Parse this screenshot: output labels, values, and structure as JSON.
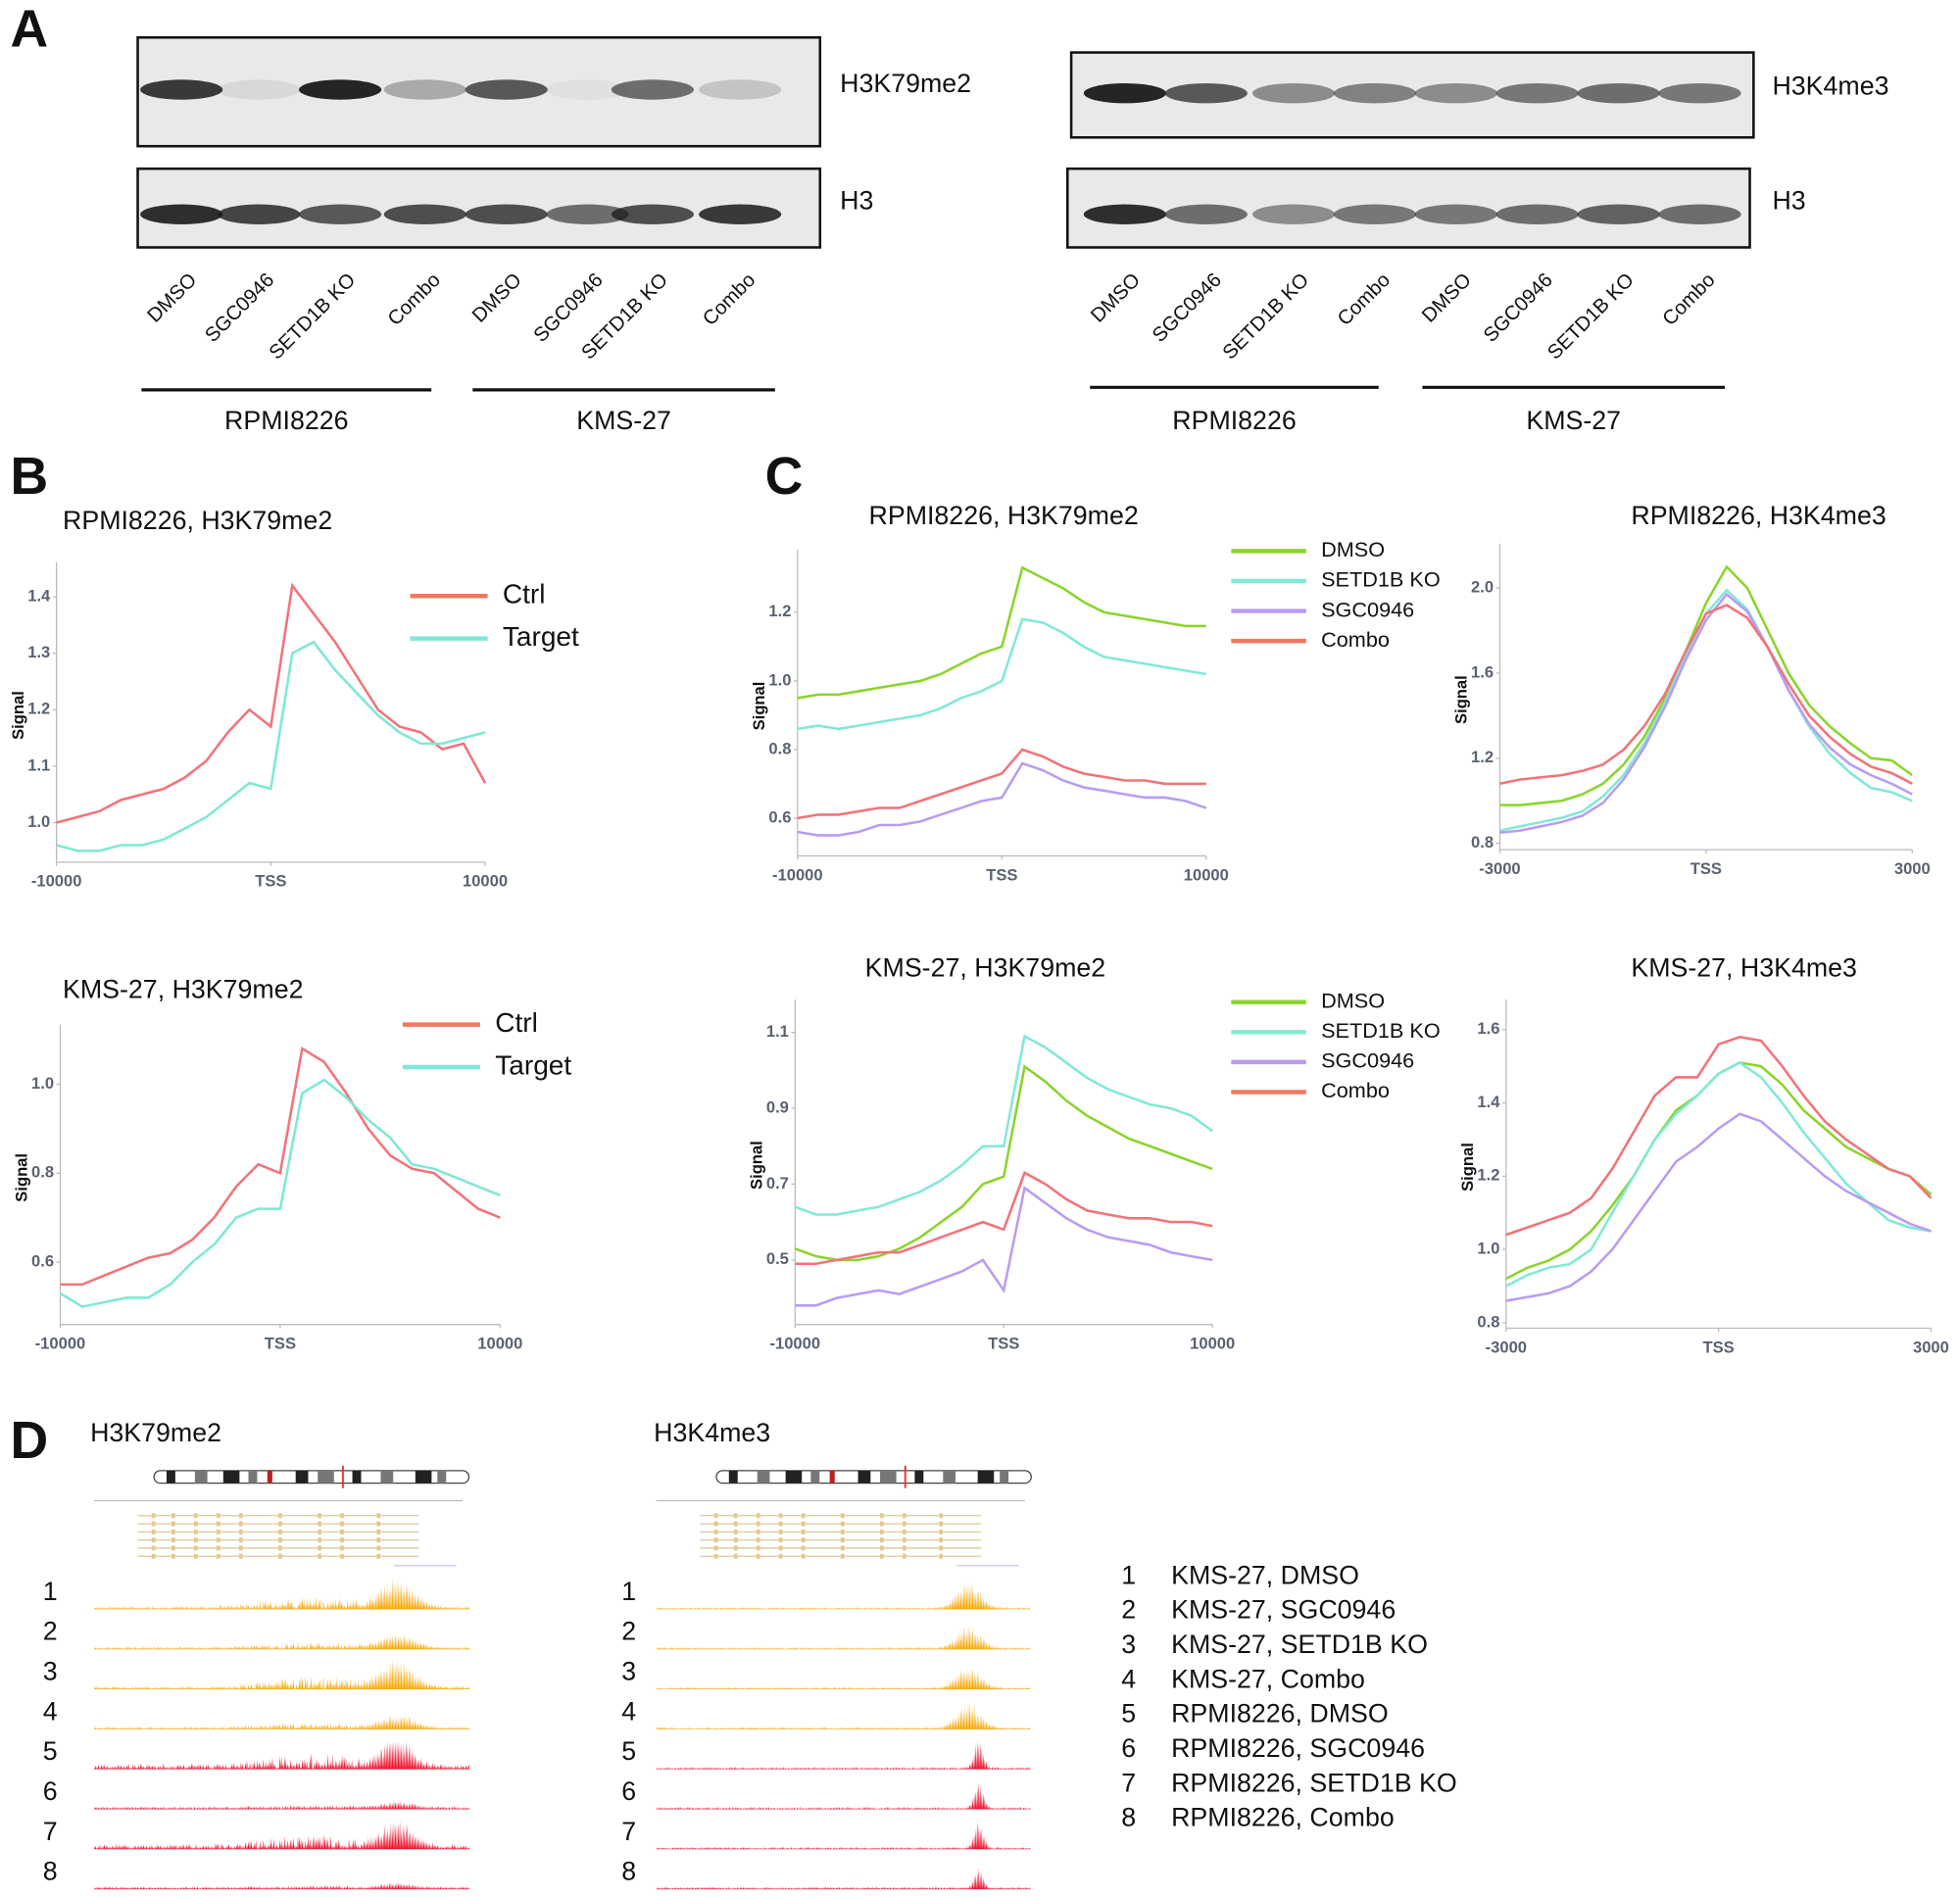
{
  "panel_labels": [
    "A",
    "B",
    "C",
    "D"
  ],
  "panel_a": {
    "blots": [
      {
        "rows": [
          "H3K79me2",
          "H3"
        ],
        "lanes": [
          "DMSO",
          "SGC0946",
          "SETD1B KO",
          "Combo",
          "DMSO",
          "SGC0946",
          "SETD1B KO",
          "Combo"
        ],
        "groups": [
          "RPMI8226",
          "KMS-27"
        ]
      },
      {
        "rows": [
          "H3K4me3",
          "H3"
        ],
        "lanes": [
          "DMSO",
          "SGC0946",
          "SETD1B KO",
          "Combo",
          "DMSO",
          "SGC0946",
          "SETD1B KO",
          "Combo"
        ],
        "groups": [
          "RPMI8226",
          "KMS-27"
        ]
      }
    ]
  },
  "chart_data": [
    {
      "type": "line",
      "title": "RPMI8226, H3K79me2",
      "ylabel": "Signal",
      "legend": "upper right",
      "x": [
        -10000,
        -9000,
        -8000,
        -7000,
        -6000,
        -5000,
        -4000,
        -3000,
        -2000,
        -1000,
        0,
        1000,
        2000,
        3000,
        4000,
        5000,
        6000,
        7000,
        8000,
        9000,
        10000
      ],
      "xlim": [
        -10000,
        10000
      ],
      "xticks": [
        -10000,
        {
          "value": 0,
          "label": "TSS"
        },
        10000
      ],
      "ylim": [
        0.93,
        1.45
      ],
      "yticks": [
        {
          "value": 1,
          "label": "1.0"
        },
        1.1,
        1.2,
        1.3,
        1.4
      ],
      "series": [
        {
          "name": "Ctrl",
          "color": "#f2737a",
          "legend_color": "#f07860",
          "values": [
            1.0,
            1.01,
            1.02,
            1.04,
            1.05,
            1.06,
            1.08,
            1.11,
            1.16,
            1.2,
            1.17,
            1.42,
            1.37,
            1.32,
            1.26,
            1.2,
            1.17,
            1.16,
            1.13,
            1.14,
            1.07
          ]
        },
        {
          "name": "Target",
          "color": "#7fe8d4",
          "legend_color": "#7fe8d4",
          "values": [
            0.96,
            0.95,
            0.95,
            0.96,
            0.96,
            0.97,
            0.99,
            1.01,
            1.04,
            1.07,
            1.06,
            1.3,
            1.32,
            1.27,
            1.23,
            1.19,
            1.16,
            1.14,
            1.14,
            1.15,
            1.16
          ]
        }
      ]
    },
    {
      "type": "line",
      "title": "KMS-27, H3K79me2",
      "ylabel": "Signal",
      "legend": "upper right",
      "x": [
        -10000,
        -9000,
        -8000,
        -7000,
        -6000,
        -5000,
        -4000,
        -3000,
        -2000,
        -1000,
        0,
        1000,
        2000,
        3000,
        4000,
        5000,
        6000,
        7000,
        8000,
        9000,
        10000
      ],
      "xlim": [
        -10000,
        10000
      ],
      "xticks": [
        -10000,
        {
          "value": 0,
          "label": "TSS"
        },
        10000
      ],
      "ylim": [
        0.46,
        1.12
      ],
      "yticks": [
        0.6,
        0.8,
        {
          "value": 1,
          "label": "1.0"
        }
      ],
      "series": [
        {
          "name": "Ctrl",
          "color": "#f2737a",
          "legend_color": "#f07860",
          "values": [
            0.55,
            0.55,
            0.57,
            0.59,
            0.61,
            0.62,
            0.65,
            0.7,
            0.77,
            0.82,
            0.8,
            1.08,
            1.05,
            0.98,
            0.9,
            0.84,
            0.81,
            0.8,
            0.76,
            0.72,
            0.7
          ]
        },
        {
          "name": "Target",
          "color": "#7fe8d4",
          "legend_color": "#7fe8d4",
          "values": [
            0.53,
            0.5,
            0.51,
            0.52,
            0.52,
            0.55,
            0.6,
            0.64,
            0.7,
            0.72,
            0.72,
            0.98,
            1.01,
            0.97,
            0.92,
            0.88,
            0.82,
            0.81,
            0.79,
            0.77,
            0.75
          ]
        }
      ]
    },
    {
      "type": "line",
      "title": "RPMI8226, H3K79me2",
      "ylabel": "Signal",
      "legend": "right",
      "x": [
        -10000,
        -9000,
        -8000,
        -7000,
        -6000,
        -5000,
        -4000,
        -3000,
        -2000,
        -1000,
        0,
        1000,
        2000,
        3000,
        4000,
        5000,
        6000,
        7000,
        8000,
        9000,
        10000
      ],
      "xlim": [
        -10000,
        10000
      ],
      "xticks": [
        -10000,
        {
          "value": 0,
          "label": "TSS"
        },
        10000
      ],
      "ylim": [
        0.49,
        1.364
      ],
      "yticks": [
        0.6,
        0.8,
        {
          "value": 1,
          "label": "1.0"
        },
        1.2
      ],
      "series": [
        {
          "name": "DMSO",
          "color": "#8ad42c",
          "legend_color": "#8ad42c",
          "values": [
            0.95,
            0.96,
            0.96,
            0.97,
            0.98,
            0.99,
            1.0,
            1.02,
            1.05,
            1.08,
            1.1,
            1.33,
            1.3,
            1.27,
            1.23,
            1.2,
            1.19,
            1.18,
            1.17,
            1.16,
            1.16
          ]
        },
        {
          "name": "SETD1B KO",
          "color": "#82e8d8",
          "legend_color": "#82e8d8",
          "values": [
            0.86,
            0.87,
            0.86,
            0.87,
            0.88,
            0.89,
            0.9,
            0.92,
            0.95,
            0.97,
            1.0,
            1.18,
            1.17,
            1.14,
            1.1,
            1.07,
            1.06,
            1.05,
            1.04,
            1.03,
            1.02
          ]
        },
        {
          "name": "SGC0946",
          "color": "#b99cf0",
          "legend_color": "#b99cf0",
          "values": [
            0.56,
            0.55,
            0.55,
            0.56,
            0.58,
            0.58,
            0.59,
            0.61,
            0.63,
            0.65,
            0.66,
            0.76,
            0.74,
            0.71,
            0.69,
            0.68,
            0.67,
            0.66,
            0.66,
            0.65,
            0.63
          ]
        },
        {
          "name": "Combo",
          "color": "#f2737a",
          "legend_color": "#f07860",
          "values": [
            0.6,
            0.61,
            0.61,
            0.62,
            0.63,
            0.63,
            0.65,
            0.67,
            0.69,
            0.71,
            0.73,
            0.8,
            0.78,
            0.75,
            0.73,
            0.72,
            0.71,
            0.71,
            0.7,
            0.7,
            0.7
          ]
        }
      ]
    },
    {
      "type": "line",
      "title": "RPMI8226, H3K4me3",
      "ylabel": "Signal",
      "legend": "none",
      "x": [
        -3000,
        -2700,
        -2400,
        -2100,
        -1800,
        -1500,
        -1200,
        -900,
        -600,
        -300,
        0,
        300,
        600,
        900,
        1200,
        1500,
        1800,
        2100,
        2400,
        2700,
        3000
      ],
      "xlim": [
        -3000,
        3000
      ],
      "xticks": [
        -3000,
        {
          "value": 0,
          "label": "TSS"
        },
        3000
      ],
      "ylim": [
        0.77,
        2.18
      ],
      "yticks": [
        0.8,
        1.2,
        1.6,
        {
          "value": 2,
          "label": "2.0"
        }
      ],
      "series": [
        {
          "name": "DMSO",
          "color": "#8ad42c",
          "values": [
            0.98,
            0.98,
            0.99,
            1.0,
            1.03,
            1.08,
            1.17,
            1.3,
            1.48,
            1.7,
            1.93,
            2.1,
            2.0,
            1.8,
            1.6,
            1.45,
            1.35,
            1.27,
            1.2,
            1.19,
            1.12
          ]
        },
        {
          "name": "SETD1B KO",
          "color": "#82e8d8",
          "values": [
            0.86,
            0.88,
            0.9,
            0.92,
            0.95,
            1.02,
            1.12,
            1.27,
            1.46,
            1.68,
            1.88,
            1.99,
            1.9,
            1.72,
            1.52,
            1.35,
            1.22,
            1.13,
            1.06,
            1.04,
            1.0
          ]
        },
        {
          "name": "SGC0946",
          "color": "#b99cf0",
          "values": [
            0.85,
            0.86,
            0.88,
            0.9,
            0.93,
            0.99,
            1.1,
            1.25,
            1.44,
            1.66,
            1.85,
            1.97,
            1.89,
            1.72,
            1.52,
            1.36,
            1.25,
            1.17,
            1.12,
            1.08,
            1.03
          ]
        },
        {
          "name": "Combo",
          "color": "#f2737a",
          "values": [
            1.08,
            1.1,
            1.11,
            1.12,
            1.14,
            1.17,
            1.24,
            1.35,
            1.5,
            1.7,
            1.88,
            1.92,
            1.86,
            1.72,
            1.55,
            1.4,
            1.3,
            1.22,
            1.16,
            1.13,
            1.08
          ]
        }
      ]
    },
    {
      "type": "line",
      "title": "KMS-27, H3K79me2",
      "ylabel": "Signal",
      "legend": "right",
      "x": [
        -10000,
        -9000,
        -8000,
        -7000,
        -6000,
        -5000,
        -4000,
        -3000,
        -2000,
        -1000,
        0,
        1000,
        2000,
        3000,
        4000,
        5000,
        6000,
        7000,
        8000,
        9000,
        10000
      ],
      "xlim": [
        -10000,
        10000
      ],
      "xticks": [
        -10000,
        {
          "value": 0,
          "label": "TSS"
        },
        10000
      ],
      "ylim": [
        0.33,
        1.17
      ],
      "yticks": [
        0.5,
        0.7,
        0.9,
        1.1
      ],
      "series": [
        {
          "name": "DMSO",
          "color": "#8ad42c",
          "legend_color": "#8ad42c",
          "values": [
            0.53,
            0.51,
            0.5,
            0.5,
            0.51,
            0.53,
            0.56,
            0.6,
            0.64,
            0.7,
            0.72,
            1.01,
            0.97,
            0.92,
            0.88,
            0.85,
            0.82,
            0.8,
            0.78,
            0.76,
            0.74
          ]
        },
        {
          "name": "SETD1B KO",
          "color": "#82e8d8",
          "legend_color": "#82e8d8",
          "values": [
            0.64,
            0.62,
            0.62,
            0.63,
            0.64,
            0.66,
            0.68,
            0.71,
            0.75,
            0.8,
            0.8,
            1.09,
            1.06,
            1.02,
            0.98,
            0.95,
            0.93,
            0.91,
            0.9,
            0.88,
            0.84
          ]
        },
        {
          "name": "SGC0946",
          "color": "#b99cf0",
          "legend_color": "#b99cf0",
          "values": [
            0.38,
            0.38,
            0.4,
            0.41,
            0.42,
            0.41,
            0.43,
            0.45,
            0.47,
            0.5,
            0.42,
            0.69,
            0.65,
            0.61,
            0.58,
            0.56,
            0.55,
            0.54,
            0.52,
            0.51,
            0.5
          ]
        },
        {
          "name": "Combo",
          "color": "#f2737a",
          "legend_color": "#f07860",
          "values": [
            0.49,
            0.49,
            0.5,
            0.51,
            0.52,
            0.52,
            0.54,
            0.56,
            0.58,
            0.6,
            0.58,
            0.73,
            0.7,
            0.66,
            0.63,
            0.62,
            0.61,
            0.61,
            0.6,
            0.6,
            0.59
          ]
        }
      ]
    },
    {
      "type": "line",
      "title": "KMS-27, H3K4me3",
      "ylabel": "Signal",
      "legend": "none",
      "x": [
        -3000,
        -2700,
        -2400,
        -2100,
        -1800,
        -1500,
        -1200,
        -900,
        -600,
        -300,
        0,
        300,
        600,
        900,
        1200,
        1500,
        1800,
        2100,
        2400,
        2700,
        3000
      ],
      "xlim": [
        -3000,
        3000
      ],
      "xticks": [
        -3000,
        {
          "value": 0,
          "label": "TSS"
        },
        3000
      ],
      "ylim": [
        0.785,
        1.665
      ],
      "yticks": [
        0.8,
        {
          "value": 1,
          "label": "1.0"
        },
        1.2,
        1.4,
        1.6
      ],
      "series": [
        {
          "name": "DMSO",
          "color": "#8ad42c",
          "values": [
            0.92,
            0.95,
            0.97,
            1.0,
            1.05,
            1.12,
            1.2,
            1.3,
            1.38,
            1.42,
            1.48,
            1.51,
            1.5,
            1.45,
            1.38,
            1.33,
            1.28,
            1.25,
            1.22,
            1.2,
            1.15
          ]
        },
        {
          "name": "SETD1B KO",
          "color": "#82e8d8",
          "values": [
            0.9,
            0.93,
            0.95,
            0.96,
            1.0,
            1.1,
            1.2,
            1.3,
            1.37,
            1.42,
            1.48,
            1.51,
            1.47,
            1.4,
            1.32,
            1.25,
            1.18,
            1.13,
            1.08,
            1.06,
            1.05
          ]
        },
        {
          "name": "SGC0946",
          "color": "#b99cf0",
          "values": [
            0.86,
            0.87,
            0.88,
            0.9,
            0.94,
            1.0,
            1.08,
            1.16,
            1.24,
            1.28,
            1.33,
            1.37,
            1.35,
            1.3,
            1.25,
            1.2,
            1.16,
            1.13,
            1.1,
            1.07,
            1.05
          ]
        },
        {
          "name": "Combo",
          "color": "#f2737a",
          "values": [
            1.04,
            1.06,
            1.08,
            1.1,
            1.14,
            1.22,
            1.32,
            1.42,
            1.47,
            1.47,
            1.56,
            1.58,
            1.57,
            1.5,
            1.42,
            1.35,
            1.3,
            1.26,
            1.22,
            1.2,
            1.14
          ]
        }
      ]
    }
  ],
  "panel_d": {
    "tracks": [
      {
        "title": "H3K79me2",
        "rows": [
          "1",
          "2",
          "3",
          "4",
          "5",
          "6",
          "7",
          "8"
        ]
      },
      {
        "title": "H3K4me3",
        "rows": [
          "1",
          "2",
          "3",
          "4",
          "5",
          "6",
          "7",
          "8"
        ]
      }
    ],
    "legend": [
      {
        "number": "1",
        "label": "KMS-27, DMSO"
      },
      {
        "number": "2",
        "label": "KMS-27, SGC0946"
      },
      {
        "number": "3",
        "label": "KMS-27, SETD1B KO"
      },
      {
        "number": "4",
        "label": "KMS-27, Combo"
      },
      {
        "number": "5",
        "label": "RPMI8226, DMSO"
      },
      {
        "number": "6",
        "label": "RPMI8226, SGC0946"
      },
      {
        "number": "7",
        "label": "RPMI8226, SETD1B KO"
      },
      {
        "number": "8",
        "label": "RPMI8226, Combo"
      }
    ]
  }
}
